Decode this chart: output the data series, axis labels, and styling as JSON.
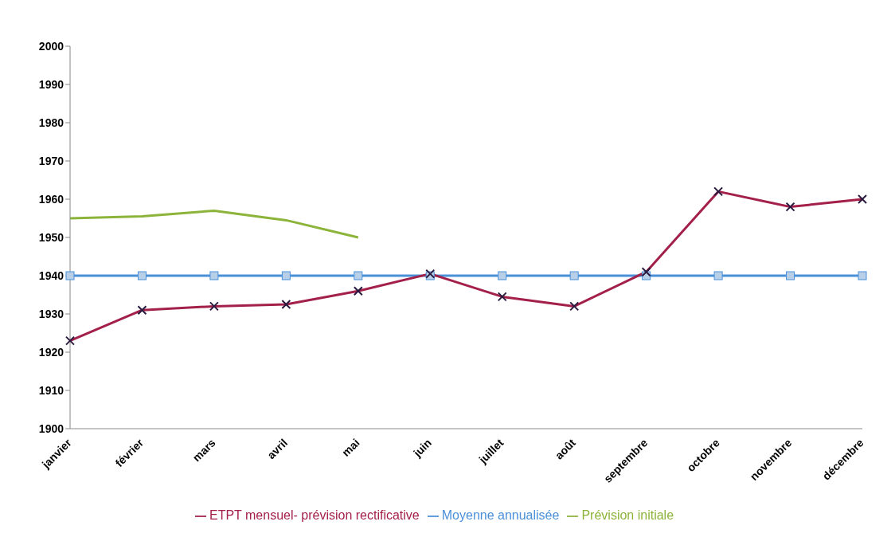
{
  "chart_data": {
    "type": "line",
    "categories": [
      "janvier",
      "février",
      "mars",
      "avril",
      "mai",
      "juin",
      "juillet",
      "août",
      "septembre",
      "octobre",
      "novembre",
      "décembre"
    ],
    "series": [
      {
        "name": "ETPT mensuel- prévision rectificative",
        "color": "#a3204a",
        "marker": "cross",
        "values": [
          1923,
          1931,
          1932,
          1932.5,
          1936,
          1940.5,
          1934.5,
          1932,
          1941,
          1962,
          1958,
          1960
        ]
      },
      {
        "name": "Moyenne annualisée",
        "color": "#4a90d9",
        "marker": "square",
        "values": [
          1940,
          1940,
          1940,
          1940,
          1940,
          1940,
          1940,
          1940,
          1940,
          1940,
          1940,
          1940
        ]
      },
      {
        "name": "Prévision initiale",
        "color": "#8db43a",
        "marker": "none",
        "values": [
          1955,
          1955.5,
          1957,
          1954.5,
          1950,
          null,
          null,
          null,
          null,
          null,
          null,
          null
        ]
      }
    ],
    "ylim": [
      1900,
      2000
    ],
    "yticks": [
      1900,
      1910,
      1920,
      1930,
      1940,
      1950,
      1960,
      1970,
      1980,
      1990,
      2000
    ],
    "grid": false,
    "legend": "bottom"
  }
}
